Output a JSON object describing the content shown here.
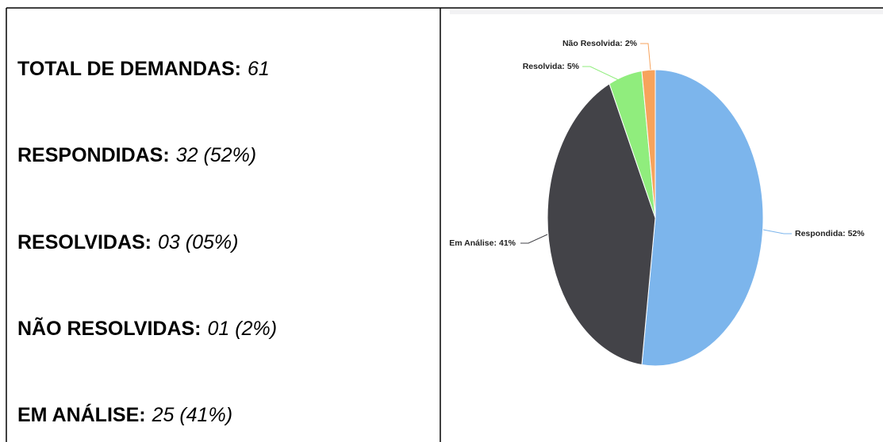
{
  "stats": [
    {
      "label": "TOTAL DE DEMANDAS:",
      "value": "61"
    },
    {
      "label": "RESPONDIDAS:",
      "value": "32 (52%)"
    },
    {
      "label": "RESOLVIDAS:",
      "value": "03 (05%)"
    },
    {
      "label": "NÃO RESOLVIDAS:",
      "value": "01 (2%)"
    },
    {
      "label": "EM ANÁLISE:",
      "value": "25 (41%)"
    }
  ],
  "chart_data": {
    "type": "pie",
    "categories": [
      "Respondida:",
      "Em Análise:",
      "Resolvida:",
      "Não Resolvida:"
    ],
    "values": [
      52,
      41,
      5,
      2
    ],
    "value_labels": [
      "52%",
      "41%",
      "5%",
      "2%"
    ],
    "colors": [
      "#7cb5ec",
      "#434348",
      "#90ed7d",
      "#f7a35c"
    ]
  }
}
